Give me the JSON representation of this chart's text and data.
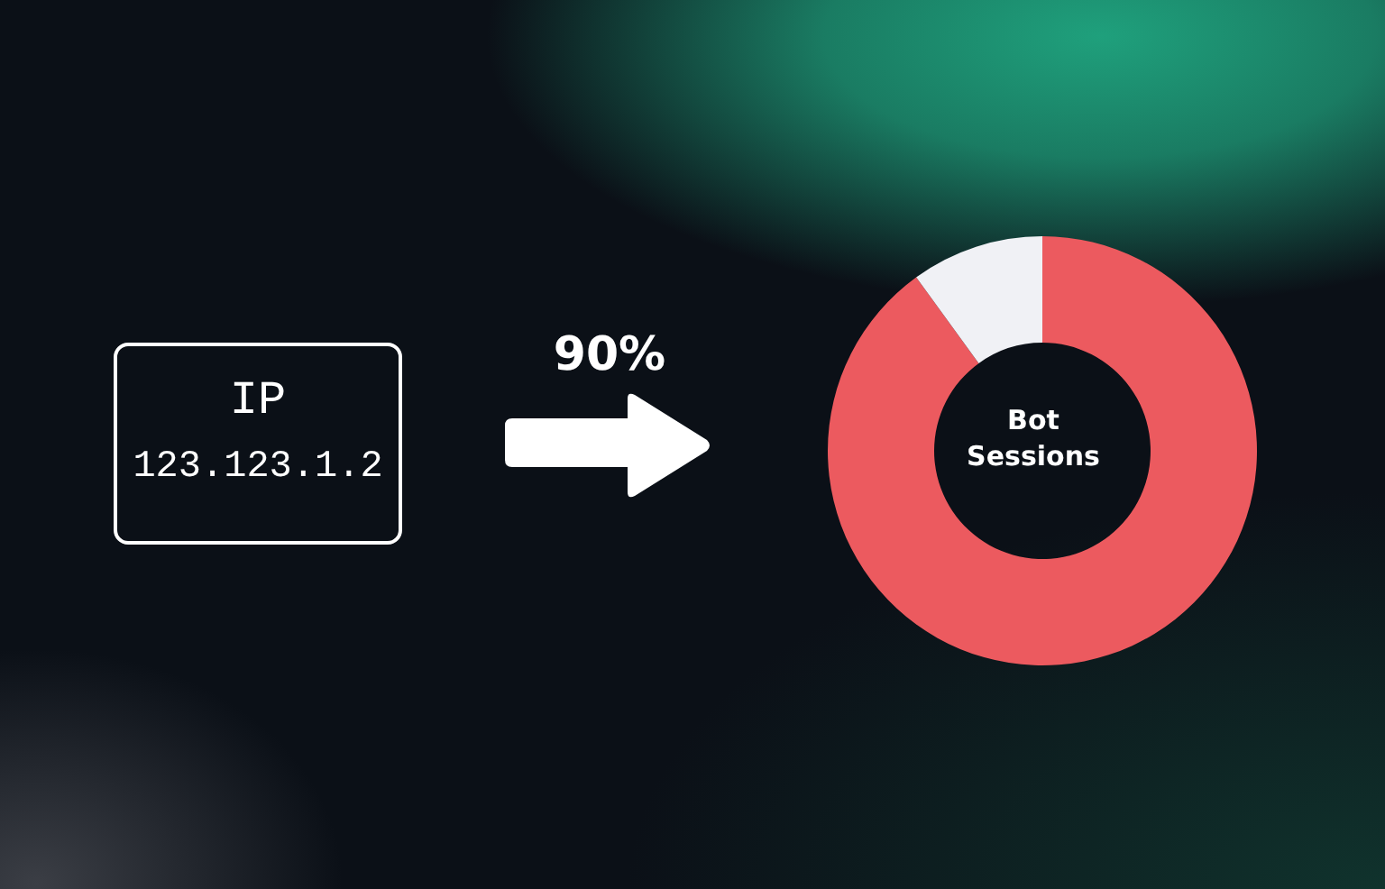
{
  "chart_data": {
    "type": "donut",
    "title": "Bot Sessions",
    "categories": [
      null,
      null
    ],
    "values": [
      90,
      10
    ],
    "colors": [
      "#ec5a5f",
      "#f0f1f5"
    ],
    "annotations": [
      "IP",
      "123.123.1.2",
      "90%"
    ]
  }
}
